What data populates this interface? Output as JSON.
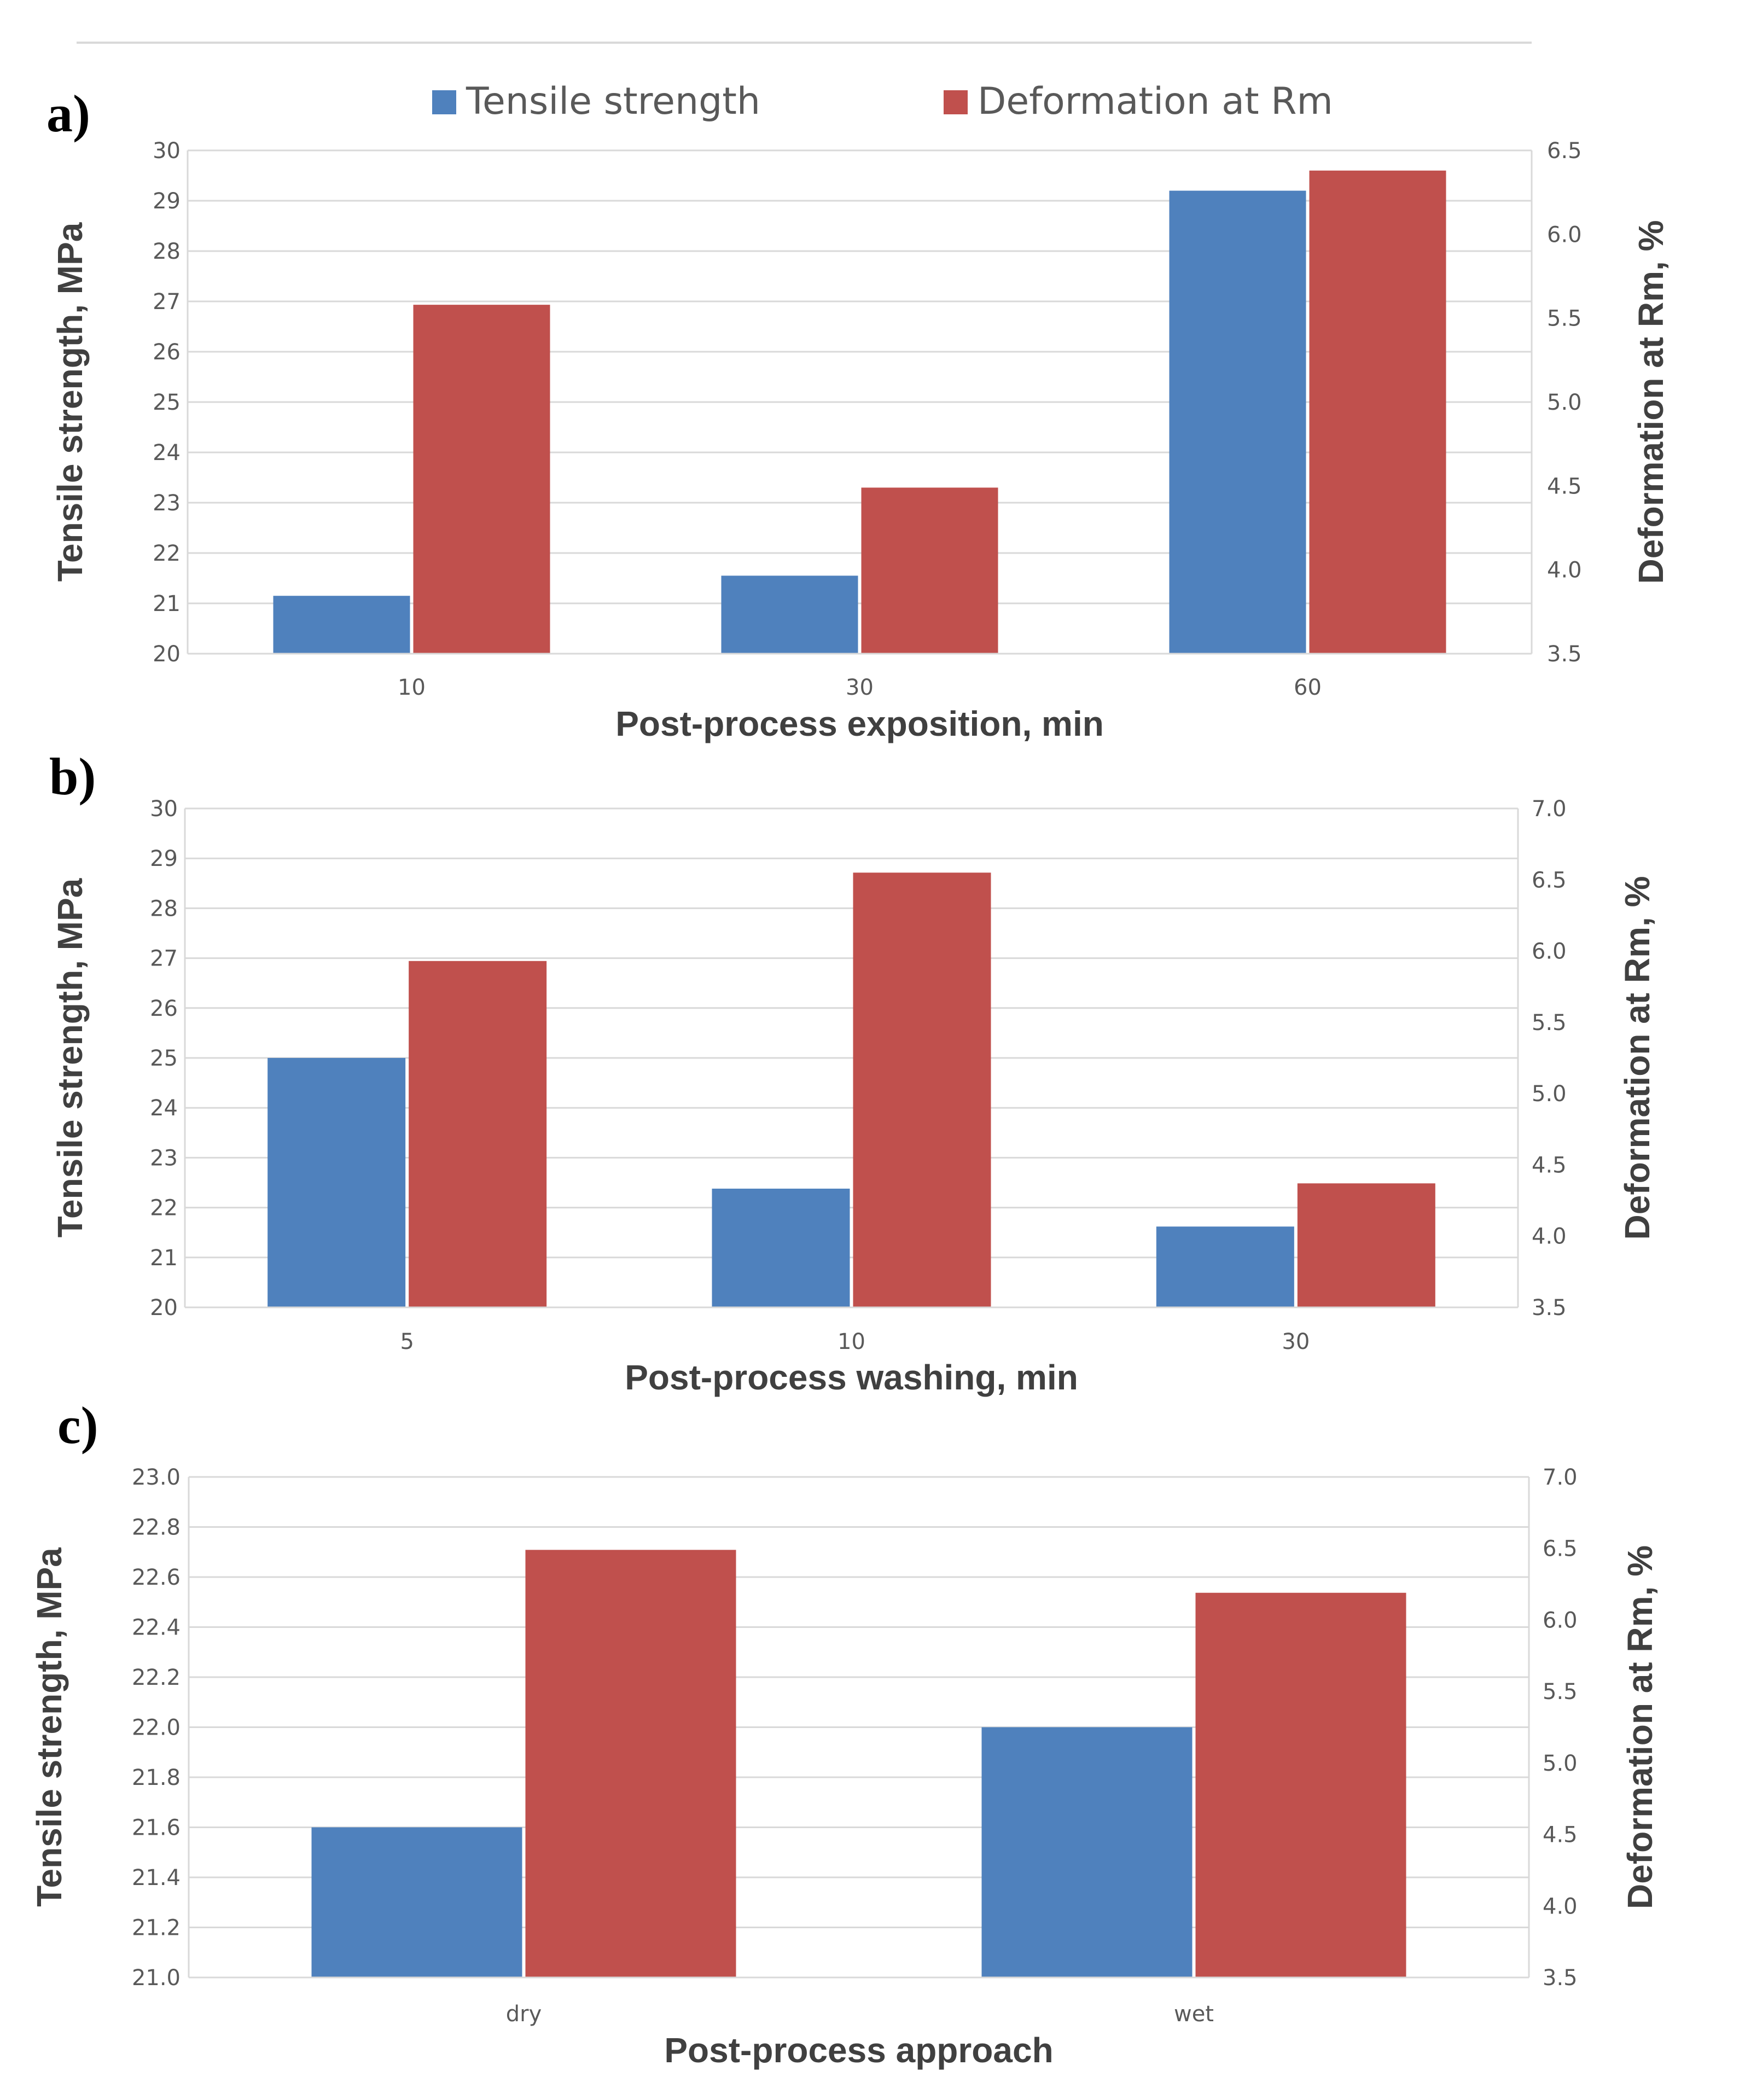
{
  "colors": {
    "tensile": "#4F81BD",
    "deformation": "#C0504D",
    "grid": "#D9D9D9",
    "text": "#595959",
    "title": "#404040"
  },
  "legend": {
    "tensile": "Tensile strength",
    "deformation": "Deformation at Rm"
  },
  "chart_data": [
    {
      "panel": "a)",
      "type": "bar",
      "xlabel": "Post-process exposition, min",
      "ylabel": "Tensile strength, MPa",
      "y2label": "Deformation at Rm, %",
      "categories": [
        "10",
        "30",
        "60"
      ],
      "ylim": [
        20,
        30
      ],
      "yticks": [
        "20",
        "21",
        "22",
        "23",
        "24",
        "25",
        "26",
        "27",
        "28",
        "29",
        "30"
      ],
      "y2lim": [
        3.5,
        6.5
      ],
      "y2ticks": [
        "3.5",
        "4.0",
        "4.5",
        "5.0",
        "5.5",
        "6.0",
        "6.5"
      ],
      "grid": true,
      "series": [
        {
          "name": "Tensile strength",
          "axis": "left",
          "values": [
            21.15,
            21.55,
            29.2
          ]
        },
        {
          "name": "Deformation at Rm",
          "axis": "right",
          "values": [
            5.58,
            4.49,
            6.38
          ]
        }
      ]
    },
    {
      "panel": "b)",
      "type": "bar",
      "xlabel": "Post-process washing, min",
      "ylabel": "Tensile strength, MPa",
      "y2label": "Deformation at Rm, %",
      "categories": [
        "5",
        "10",
        "30"
      ],
      "ylim": [
        20,
        30
      ],
      "yticks": [
        "20",
        "21",
        "22",
        "23",
        "24",
        "25",
        "26",
        "27",
        "28",
        "29",
        "30"
      ],
      "y2lim": [
        3.5,
        7.0
      ],
      "y2ticks": [
        "3.5",
        "4.0",
        "4.5",
        "5.0",
        "5.5",
        "6.0",
        "6.5",
        "7.0"
      ],
      "grid": true,
      "series": [
        {
          "name": "Tensile strength",
          "axis": "left",
          "values": [
            25.0,
            22.38,
            21.62
          ]
        },
        {
          "name": "Deformation at Rm",
          "axis": "right",
          "values": [
            5.93,
            6.55,
            4.37
          ]
        }
      ]
    },
    {
      "panel": "c)",
      "type": "bar",
      "xlabel": "Post-process approach",
      "ylabel": "Tensile strength, MPa",
      "y2label": "Deformation at Rm, %",
      "categories": [
        "dry",
        "wet"
      ],
      "ylim": [
        21.0,
        23.0
      ],
      "yticks": [
        "21.0",
        "21.2",
        "21.4",
        "21.6",
        "21.8",
        "22.0",
        "22.2",
        "22.4",
        "22.6",
        "22.8",
        "23.0"
      ],
      "y2lim": [
        3.5,
        7.0
      ],
      "y2ticks": [
        "3.5",
        "4.0",
        "4.5",
        "5.0",
        "5.5",
        "6.0",
        "6.5",
        "7.0"
      ],
      "grid": true,
      "series": [
        {
          "name": "Tensile strength",
          "axis": "left",
          "values": [
            21.6,
            22.0
          ]
        },
        {
          "name": "Deformation at Rm",
          "axis": "right",
          "values": [
            6.49,
            6.19
          ]
        }
      ]
    }
  ]
}
